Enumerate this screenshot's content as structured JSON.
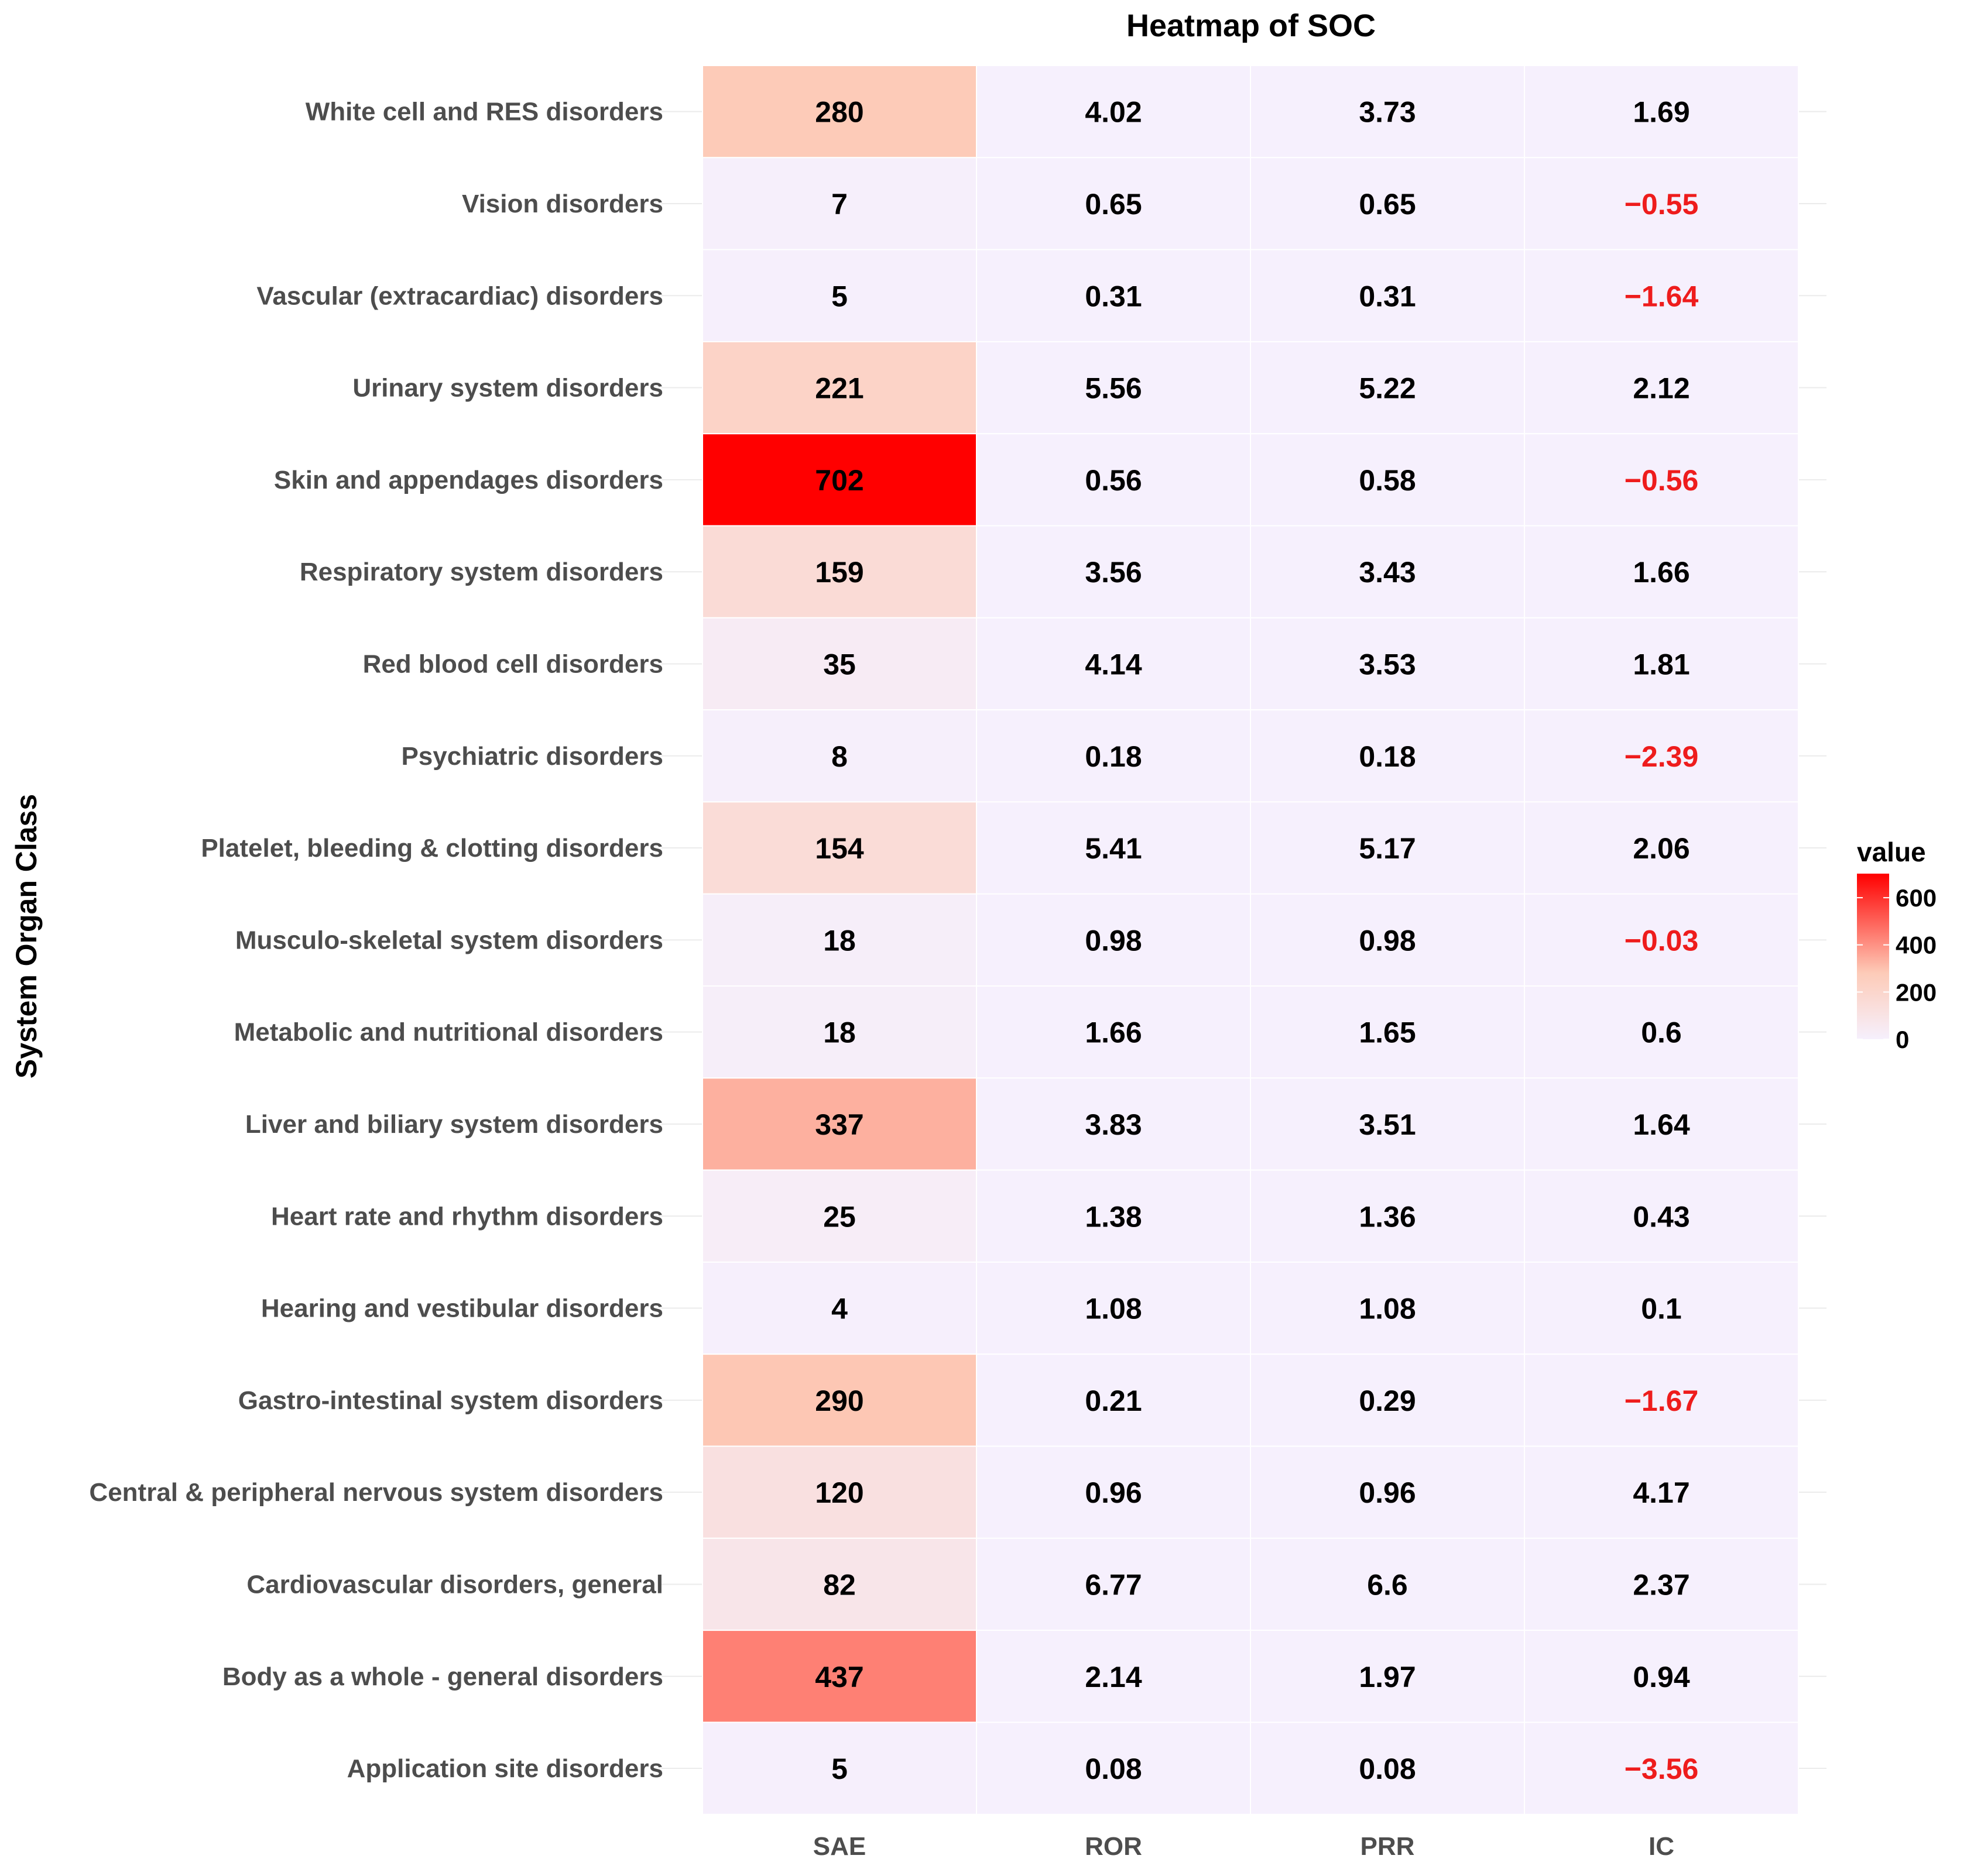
{
  "chart_data": {
    "type": "heatmap",
    "title": "Heatmap of SOC",
    "xlabel": "",
    "ylabel": "System Organ Class",
    "columns": [
      "SAE",
      "ROR",
      "PRR",
      "IC"
    ],
    "rows": [
      {
        "name": "White cell and RES disorders",
        "values": [
          "280",
          "4.02",
          "3.73",
          "1.69"
        ]
      },
      {
        "name": "Vision disorders",
        "values": [
          "7",
          "0.65",
          "0.65",
          "−0.55"
        ]
      },
      {
        "name": "Vascular (extracardiac) disorders",
        "values": [
          "5",
          "0.31",
          "0.31",
          "−1.64"
        ]
      },
      {
        "name": "Urinary system disorders",
        "values": [
          "221",
          "5.56",
          "5.22",
          "2.12"
        ]
      },
      {
        "name": "Skin and appendages disorders",
        "values": [
          "702",
          "0.56",
          "0.58",
          "−0.56"
        ]
      },
      {
        "name": "Respiratory system disorders",
        "values": [
          "159",
          "3.56",
          "3.43",
          "1.66"
        ]
      },
      {
        "name": "Red blood cell disorders",
        "values": [
          "35",
          "4.14",
          "3.53",
          "1.81"
        ]
      },
      {
        "name": "Psychiatric disorders",
        "values": [
          "8",
          "0.18",
          "0.18",
          "−2.39"
        ]
      },
      {
        "name": "Platelet, bleeding & clotting disorders",
        "values": [
          "154",
          "5.41",
          "5.17",
          "2.06"
        ]
      },
      {
        "name": "Musculo-skeletal system disorders",
        "values": [
          "18",
          "0.98",
          "0.98",
          "−0.03"
        ]
      },
      {
        "name": "Metabolic and nutritional disorders",
        "values": [
          "18",
          "1.66",
          "1.65",
          "0.6"
        ]
      },
      {
        "name": "Liver and biliary system disorders",
        "values": [
          "337",
          "3.83",
          "3.51",
          "1.64"
        ]
      },
      {
        "name": "Heart rate and rhythm disorders",
        "values": [
          "25",
          "1.38",
          "1.36",
          "0.43"
        ]
      },
      {
        "name": "Hearing and vestibular disorders",
        "values": [
          "4",
          "1.08",
          "1.08",
          "0.1"
        ]
      },
      {
        "name": "Gastro-intestinal system disorders",
        "values": [
          "290",
          "0.21",
          "0.29",
          "−1.67"
        ]
      },
      {
        "name": "Central & peripheral nervous system disorders",
        "values": [
          "120",
          "0.96",
          "0.96",
          "4.17"
        ]
      },
      {
        "name": "Cardiovascular disorders, general",
        "values": [
          "82",
          "6.77",
          "6.6",
          "2.37"
        ]
      },
      {
        "name": "Body as a whole - general disorders",
        "values": [
          "437",
          "2.14",
          "1.97",
          "0.94"
        ]
      },
      {
        "name": "Application site disorders",
        "values": [
          "5",
          "0.08",
          "0.08",
          "−3.56"
        ]
      }
    ],
    "legend": {
      "title": "value",
      "ticks": [
        0,
        200,
        400,
        600
      ],
      "range": [
        0,
        702
      ],
      "low_color": "#f6f0fd",
      "high_color": "#ff0000",
      "placement": "right"
    },
    "negative_text_color": "#ee1c1c",
    "text_color": "#000000"
  }
}
